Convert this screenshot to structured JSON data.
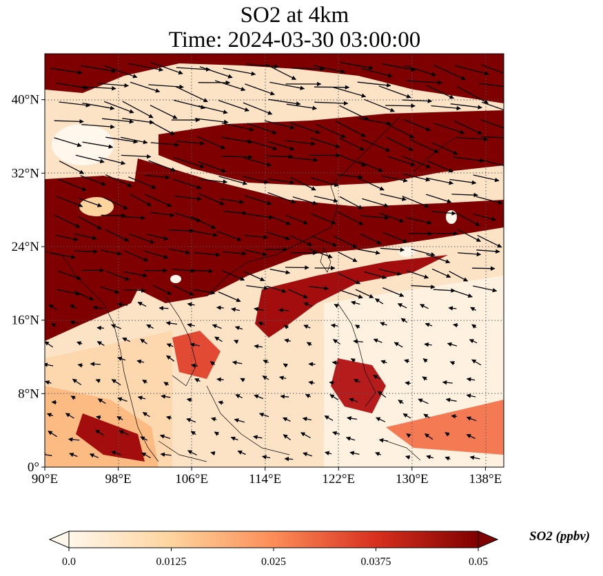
{
  "title": {
    "line1": "SO2 at 4km",
    "line2": "Time: 2024-03-30 03:00:00"
  },
  "map": {
    "lon_range": [
      90,
      140
    ],
    "lat_range": [
      0,
      45
    ],
    "lon_ticks": [
      {
        "value": 90,
        "label": "90°E"
      },
      {
        "value": 98,
        "label": "98°E"
      },
      {
        "value": 106,
        "label": "106°E"
      },
      {
        "value": 114,
        "label": "114°E"
      },
      {
        "value": 122,
        "label": "122°E"
      },
      {
        "value": 130,
        "label": "130°E"
      },
      {
        "value": 138,
        "label": "138°E"
      }
    ],
    "lat_ticks": [
      {
        "value": 0,
        "label": "0°"
      },
      {
        "value": 8,
        "label": "8°N"
      },
      {
        "value": 16,
        "label": "16°N"
      },
      {
        "value": 24,
        "label": "24°N"
      },
      {
        "value": 32,
        "label": "32°N"
      },
      {
        "value": 40,
        "label": "40°N"
      }
    ],
    "gridlines": true,
    "field": "SO2 concentration (filled) with wind vectors",
    "colormap": "OrRd"
  },
  "colorbar": {
    "label": "SO2 (ppbv)",
    "ticks": [
      {
        "value": 0.0,
        "label": "0.0"
      },
      {
        "value": 0.0125,
        "label": "0.0125"
      },
      {
        "value": 0.025,
        "label": "0.025"
      },
      {
        "value": 0.0375,
        "label": "0.0375"
      },
      {
        "value": 0.05,
        "label": "0.05"
      }
    ],
    "range": [
      0,
      0.05
    ],
    "extend": "both",
    "colors": [
      "#fff7ec",
      "#fdd49e",
      "#fc8d59",
      "#d7301f",
      "#7f0000"
    ]
  }
}
